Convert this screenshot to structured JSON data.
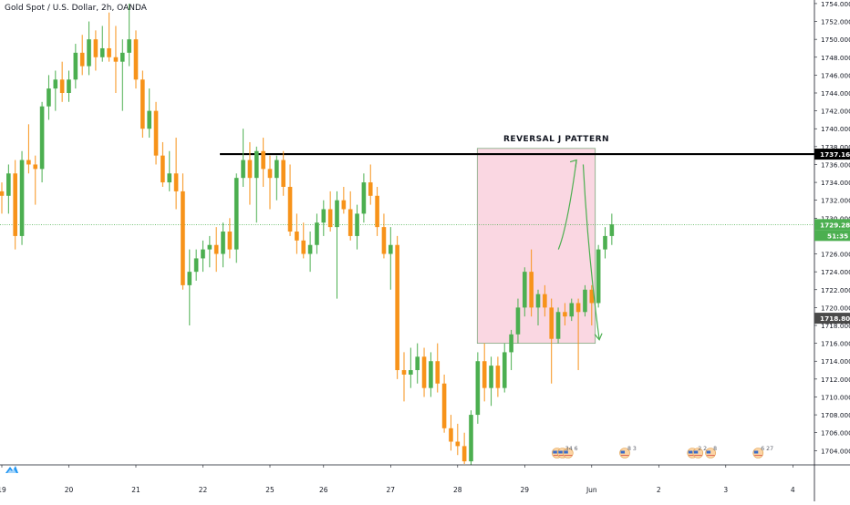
{
  "symbol_title": "Gold Spot / U.S. Dollar, 2h, OANDA",
  "colors": {
    "up": "#4caf50",
    "down": "#f7931a",
    "resistance": "#000000",
    "current_line": "#4caf50",
    "box_fill": "#f8c6d6",
    "box_border": "#7fa97f",
    "arrow": "#4caf50",
    "marker_gray": "#5d606b"
  },
  "chart_data": {
    "type": "candlestick",
    "title": "Gold Spot / U.S. Dollar, 2h, OANDA",
    "ylim": [
      1702.4,
      1754.4
    ],
    "y_ticks": [
      "1704.000",
      "1706.000",
      "1708.000",
      "1710.000",
      "1712.000",
      "1714.000",
      "1716.000",
      "1718.000",
      "1720.000",
      "1722.000",
      "1724.000",
      "1726.000",
      "1728.000",
      "1730.000",
      "1732.000",
      "1734.000",
      "1736.000",
      "1738.000",
      "1740.000",
      "1742.000",
      "1744.000",
      "1746.000",
      "1748.000",
      "1750.000",
      "1752.000",
      "1754.000"
    ],
    "x_ticks": [
      {
        "label": "19",
        "index": 0
      },
      {
        "label": "20",
        "index": 10
      },
      {
        "label": "21",
        "index": 20
      },
      {
        "label": "22",
        "index": 30
      },
      {
        "label": "25",
        "index": 40
      },
      {
        "label": "26",
        "index": 48
      },
      {
        "label": "27",
        "index": 58
      },
      {
        "label": "28",
        "index": 68
      },
      {
        "label": "29",
        "index": 78
      },
      {
        "label": "Jun",
        "index": 88
      },
      {
        "label": "2",
        "index": 98
      },
      {
        "label": "3",
        "index": 108
      },
      {
        "label": "4",
        "index": 118
      }
    ],
    "candles": [
      [
        1733.0,
        1734.0,
        1730.5,
        1732.5
      ],
      [
        1732.5,
        1736.0,
        1730.5,
        1735.0
      ],
      [
        1735.0,
        1736.5,
        1726.5,
        1728.0
      ],
      [
        1728.0,
        1737.5,
        1727.0,
        1736.5
      ],
      [
        1736.5,
        1740.5,
        1735.0,
        1736.0
      ],
      [
        1736.0,
        1737.0,
        1731.5,
        1735.5
      ],
      [
        1735.5,
        1743.0,
        1734.0,
        1742.5
      ],
      [
        1742.5,
        1746.0,
        1741.0,
        1744.5
      ],
      [
        1744.5,
        1746.5,
        1742.0,
        1745.5
      ],
      [
        1745.5,
        1747.5,
        1743.0,
        1744.0
      ],
      [
        1744.0,
        1746.5,
        1743.0,
        1745.5
      ],
      [
        1745.5,
        1749.5,
        1744.5,
        1748.5
      ],
      [
        1748.5,
        1750.5,
        1746.0,
        1747.0
      ],
      [
        1747.0,
        1752.0,
        1746.0,
        1750.0
      ],
      [
        1750.0,
        1751.0,
        1746.5,
        1748.0
      ],
      [
        1748.0,
        1751.5,
        1747.5,
        1749.0
      ],
      [
        1749.0,
        1753.0,
        1747.5,
        1748.0
      ],
      [
        1748.0,
        1751.5,
        1744.0,
        1747.5
      ],
      [
        1747.5,
        1750.0,
        1742.0,
        1748.5
      ],
      [
        1748.5,
        1754.0,
        1747.0,
        1750.0
      ],
      [
        1750.0,
        1751.0,
        1744.5,
        1745.5
      ],
      [
        1745.5,
        1746.5,
        1739.0,
        1740.0
      ],
      [
        1740.0,
        1744.5,
        1739.0,
        1742.0
      ],
      [
        1742.0,
        1743.0,
        1736.0,
        1737.0
      ],
      [
        1737.0,
        1738.5,
        1733.5,
        1734.0
      ],
      [
        1734.0,
        1737.5,
        1733.0,
        1735.0
      ],
      [
        1735.0,
        1739.0,
        1731.0,
        1733.0
      ],
      [
        1733.0,
        1735.0,
        1722.0,
        1722.5
      ],
      [
        1722.5,
        1726.5,
        1718.0,
        1724.0
      ],
      [
        1724.0,
        1726.5,
        1723.0,
        1725.5
      ],
      [
        1725.5,
        1727.5,
        1724.0,
        1726.5
      ],
      [
        1726.5,
        1728.0,
        1724.5,
        1727.0
      ],
      [
        1727.0,
        1729.0,
        1724.0,
        1726.0
      ],
      [
        1726.0,
        1729.5,
        1724.5,
        1728.5
      ],
      [
        1728.5,
        1730.0,
        1725.5,
        1726.5
      ],
      [
        1726.5,
        1735.0,
        1725.0,
        1734.5
      ],
      [
        1734.5,
        1740.0,
        1733.5,
        1736.5
      ],
      [
        1736.5,
        1738.5,
        1731.5,
        1734.5
      ],
      [
        1734.5,
        1738.0,
        1729.5,
        1737.5
      ],
      [
        1737.5,
        1739.0,
        1733.5,
        1735.5
      ],
      [
        1735.5,
        1737.0,
        1731.0,
        1734.5
      ],
      [
        1734.5,
        1737.0,
        1732.0,
        1736.5
      ],
      [
        1736.5,
        1737.5,
        1732.5,
        1733.5
      ],
      [
        1733.5,
        1736.0,
        1728.0,
        1728.5
      ],
      [
        1728.5,
        1730.5,
        1726.0,
        1727.5
      ],
      [
        1727.5,
        1729.5,
        1725.5,
        1726.0
      ],
      [
        1726.0,
        1728.5,
        1724.0,
        1727.0
      ],
      [
        1727.0,
        1730.5,
        1726.0,
        1729.5
      ],
      [
        1729.5,
        1732.0,
        1728.0,
        1731.0
      ],
      [
        1731.0,
        1733.0,
        1728.5,
        1729.0
      ],
      [
        1729.0,
        1733.0,
        1721.0,
        1732.0
      ],
      [
        1732.0,
        1733.5,
        1730.5,
        1731.0
      ],
      [
        1731.0,
        1733.0,
        1727.5,
        1728.0
      ],
      [
        1728.0,
        1731.5,
        1726.5,
        1730.5
      ],
      [
        1730.5,
        1735.0,
        1729.5,
        1734.0
      ],
      [
        1734.0,
        1736.0,
        1731.5,
        1732.5
      ],
      [
        1732.5,
        1733.5,
        1728.0,
        1729.0
      ],
      [
        1729.0,
        1730.5,
        1725.5,
        1726.0
      ],
      [
        1726.0,
        1729.0,
        1722.0,
        1727.0
      ],
      [
        1727.0,
        1728.0,
        1712.0,
        1713.0
      ],
      [
        1713.0,
        1715.0,
        1709.5,
        1712.5
      ],
      [
        1712.5,
        1715.5,
        1711.0,
        1713.0
      ],
      [
        1713.0,
        1716.0,
        1711.5,
        1714.5
      ],
      [
        1714.5,
        1715.5,
        1710.0,
        1711.0
      ],
      [
        1711.0,
        1715.0,
        1710.0,
        1714.0
      ],
      [
        1714.0,
        1716.0,
        1710.5,
        1711.5
      ],
      [
        1711.5,
        1712.5,
        1706.0,
        1706.5
      ],
      [
        1706.5,
        1708.0,
        1704.0,
        1705.0
      ],
      [
        1705.0,
        1707.0,
        1703.5,
        1704.5
      ],
      [
        1704.5,
        1706.0,
        1702.5,
        1702.8
      ],
      [
        1702.8,
        1708.5,
        1702.4,
        1708.0
      ],
      [
        1708.0,
        1715.0,
        1707.0,
        1714.0
      ],
      [
        1714.0,
        1716.0,
        1709.5,
        1711.0
      ],
      [
        1711.0,
        1714.5,
        1709.0,
        1713.5
      ],
      [
        1713.5,
        1714.5,
        1710.0,
        1711.0
      ],
      [
        1711.0,
        1716.0,
        1710.5,
        1715.0
      ],
      [
        1715.0,
        1717.5,
        1713.0,
        1717.0
      ],
      [
        1717.0,
        1721.0,
        1716.0,
        1720.0
      ],
      [
        1720.0,
        1724.5,
        1719.0,
        1724.0
      ],
      [
        1724.0,
        1726.5,
        1719.0,
        1720.0
      ],
      [
        1720.0,
        1722.0,
        1718.0,
        1721.5
      ],
      [
        1721.5,
        1722.5,
        1719.0,
        1720.0
      ],
      [
        1720.0,
        1721.0,
        1711.5,
        1716.5
      ],
      [
        1716.5,
        1720.0,
        1716.0,
        1719.5
      ],
      [
        1719.5,
        1720.5,
        1718.0,
        1719.0
      ],
      [
        1719.0,
        1721.0,
        1718.5,
        1720.5
      ],
      [
        1720.5,
        1721.0,
        1713.0,
        1719.5
      ],
      [
        1719.5,
        1722.5,
        1719.0,
        1722.0
      ],
      [
        1722.0,
        1722.5,
        1718.0,
        1720.5
      ],
      [
        1720.5,
        1727.0,
        1720.0,
        1726.5
      ],
      [
        1726.5,
        1729.0,
        1725.5,
        1728.0
      ],
      [
        1728.0,
        1730.5,
        1727.0,
        1729.3
      ]
    ],
    "resistance_level": 1737.161,
    "resistance_label": "1737.161",
    "current_price": 1729.282,
    "current_price_label": "1729.282",
    "countdown_label": "51:35",
    "crosshair_price_label": "1718.807",
    "annotation": {
      "label": "REVERSAL J PATTERN",
      "box": {
        "x_start": 71.2,
        "x_end": 88.8,
        "y_low": 1716.0,
        "y_high": 1737.8
      },
      "arrow_path": [
        {
          "index": 83.3,
          "price": 1726.5
        },
        {
          "index": 86.0,
          "price": 1736.5
        },
        {
          "index": 87.0,
          "price": 1736.0
        },
        {
          "index": 89.4,
          "price": 1716.4
        }
      ]
    },
    "event_markers": [
      {
        "index": 83.1,
        "label": "34 6",
        "flags": 3
      },
      {
        "index": 93.2,
        "label": "8 3",
        "flags": 1
      },
      {
        "index": 103.3,
        "label": "2 2",
        "flags": 2
      },
      {
        "index": 106.0,
        "label": "8",
        "flags": 1
      },
      {
        "index": 113.1,
        "label": "6 27",
        "flags": 1
      }
    ],
    "grid": false
  }
}
